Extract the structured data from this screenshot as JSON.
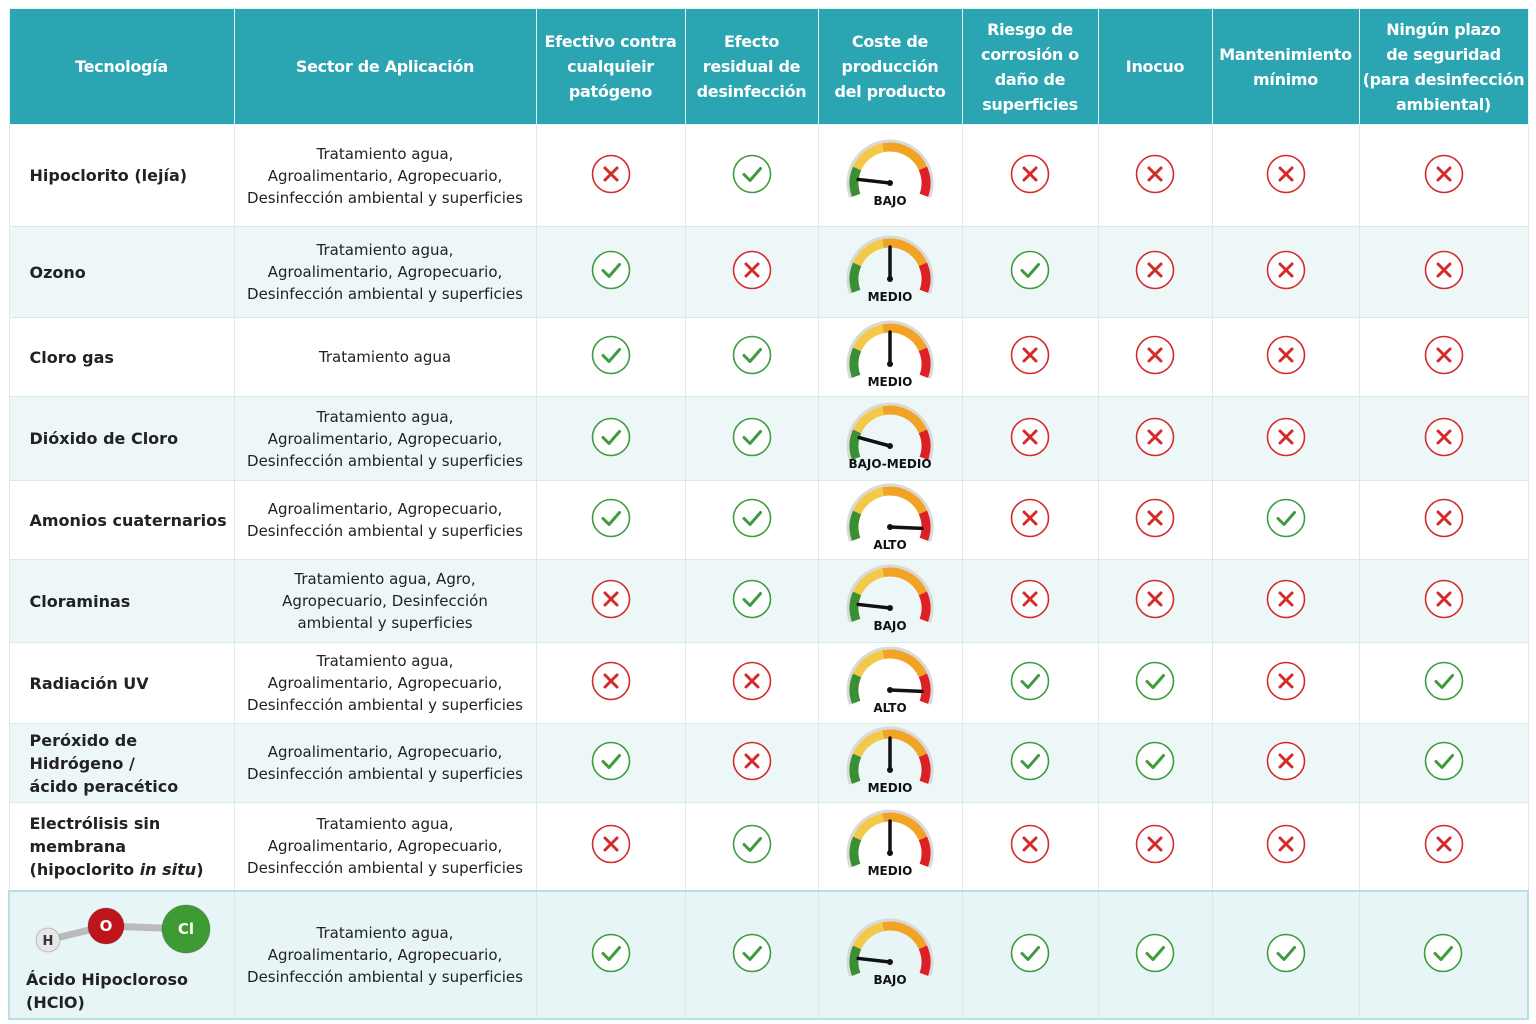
{
  "table": {
    "headers": [
      "Tecnología",
      "Sector de Aplicación",
      "Efectivo contra\ncualquieir\npatógeno",
      "Efecto\nresidual de\ndesinfección",
      "Coste de\nproducción\ndel producto",
      "Riesgo de\ncorrosión o\ndaño de\nsuperficies",
      "Inocuo",
      "Mantenimiento\nmínimo",
      "Ningún plazo\nde seguridad\n(para desinfección\nambiental)"
    ],
    "rows": [
      {
        "name": "Hipoclorito (lejía)",
        "sector": "Tratamiento agua,\nAgroalimentario, Agropecuario,\nDesinfección ambiental y superficies",
        "effective": false,
        "residual": true,
        "cost": "BAJO",
        "cost_level": 0.12,
        "corrosion": false,
        "harmless": false,
        "maintenance": false,
        "no_wait": false
      },
      {
        "name": "Ozono",
        "sector": "Tratamiento agua,\nAgroalimentario, Agropecuario,\nDesinfección ambiental y superficies",
        "effective": true,
        "residual": false,
        "cost": "MEDIO",
        "cost_level": 0.5,
        "corrosion": true,
        "harmless": false,
        "maintenance": false,
        "no_wait": false
      },
      {
        "name": "Cloro gas",
        "sector": "Tratamiento agua",
        "effective": true,
        "residual": true,
        "cost": "MEDIO",
        "cost_level": 0.5,
        "corrosion": false,
        "harmless": false,
        "maintenance": false,
        "no_wait": false
      },
      {
        "name": "Dióxido de Cloro",
        "sector": "Tratamiento agua,\nAgroalimentario, Agropecuario,\nDesinfección ambiental y superficies",
        "effective": true,
        "residual": true,
        "cost": "BAJO-MEDIO",
        "cost_level": 0.16,
        "corrosion": false,
        "harmless": false,
        "maintenance": false,
        "no_wait": false
      },
      {
        "name": "Amonios cuaternarios",
        "sector": "Agroalimentario, Agropecuario,\nDesinfección ambiental y superficies",
        "effective": true,
        "residual": true,
        "cost": "ALTO",
        "cost_level": 0.92,
        "corrosion": false,
        "harmless": false,
        "maintenance": true,
        "no_wait": false
      },
      {
        "name": "Cloraminas",
        "sector": "Tratamiento agua, Agro,\nAgropecuario, Desinfección\nambiental y superficies",
        "effective": false,
        "residual": true,
        "cost": "BAJO",
        "cost_level": 0.12,
        "corrosion": false,
        "harmless": false,
        "maintenance": false,
        "no_wait": false
      },
      {
        "name": "Radiación UV",
        "sector": "Tratamiento agua,\nAgroalimentario, Agropecuario,\nDesinfección ambiental y superficies",
        "effective": false,
        "residual": false,
        "cost": "ALTO",
        "cost_level": 0.92,
        "corrosion": true,
        "harmless": true,
        "maintenance": false,
        "no_wait": true
      },
      {
        "name": "Peróxido de Hidrógeno /\nácido peracético",
        "sector": "Agroalimentario, Agropecuario,\nDesinfección ambiental y superficies",
        "effective": true,
        "residual": false,
        "cost": "MEDIO",
        "cost_level": 0.5,
        "corrosion": true,
        "harmless": true,
        "maintenance": false,
        "no_wait": true
      },
      {
        "name": "Electrólisis sin membrana\n(hipoclorito in situ)",
        "name_italic": "in situ",
        "sector": "Tratamiento agua,\nAgroalimentario, Agropecuario,\nDesinfección ambiental y superficies",
        "effective": false,
        "residual": true,
        "cost": "MEDIO",
        "cost_level": 0.5,
        "corrosion": false,
        "harmless": false,
        "maintenance": false,
        "no_wait": false
      },
      {
        "name": "Ácido Hipocloroso (HClO)",
        "molecule": [
          "H",
          "O",
          "Cl"
        ],
        "sector": "Tratamiento agua,\nAgroalimentario, Agropecuario,\nDesinfección ambiental y superficies",
        "effective": true,
        "residual": true,
        "cost": "BAJO",
        "cost_level": 0.12,
        "corrosion": true,
        "harmless": true,
        "maintenance": true,
        "no_wait": true
      }
    ]
  }
}
